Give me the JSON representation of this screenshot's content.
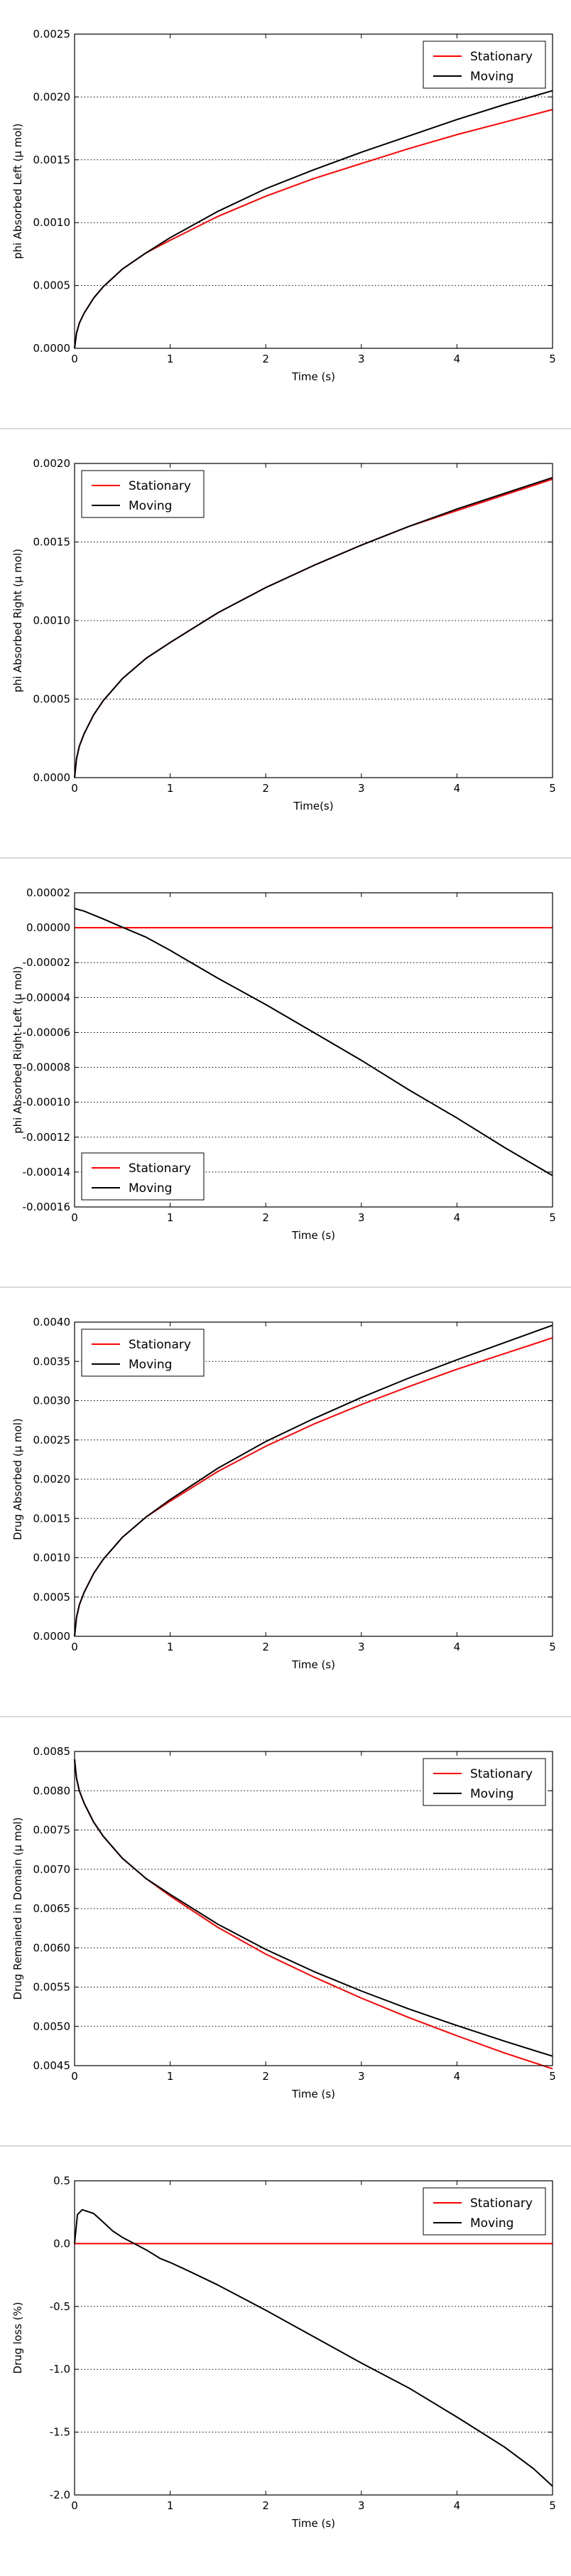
{
  "chart_data": [
    {
      "type": "line",
      "xlabel": "Time (s)",
      "ylabel": "phi Absorbed Left (μ mol)",
      "xlim": [
        0,
        5
      ],
      "ylim": [
        0,
        0.0025
      ],
      "xticks": [
        "0",
        "1",
        "2",
        "3",
        "4",
        "5"
      ],
      "yticks": [
        "0.0000",
        "0.0005",
        "0.0010",
        "0.0015",
        "0.0020",
        "0.0025"
      ],
      "grid": "horizontal dotted",
      "legend_position": "top-right",
      "x": [
        0,
        0.02,
        0.05,
        0.1,
        0.2,
        0.3,
        0.5,
        0.75,
        1,
        1.5,
        2,
        2.5,
        3,
        3.5,
        4,
        4.5,
        5
      ],
      "series": [
        {
          "name": "Stationary",
          "color": "#ff0000",
          "values": [
            0,
            0.00012,
            0.0002,
            0.00028,
            0.0004,
            0.00049,
            0.00063,
            0.00076,
            0.00086,
            0.00105,
            0.00121,
            0.00135,
            0.00147,
            0.00159,
            0.0017,
            0.0018,
            0.0019
          ]
        },
        {
          "name": "Moving",
          "color": "#000000",
          "values": [
            0,
            0.00012,
            0.0002,
            0.00028,
            0.0004,
            0.00049,
            0.00063,
            0.00076,
            0.00088,
            0.00109,
            0.00127,
            0.00142,
            0.00156,
            0.00169,
            0.00182,
            0.00194,
            0.00205
          ]
        }
      ]
    },
    {
      "type": "line",
      "xlabel": "Time(s)",
      "ylabel": "phi Absorbed Right (μ mol)",
      "xlim": [
        0,
        5
      ],
      "ylim": [
        0,
        0.002
      ],
      "xticks": [
        "0",
        "1",
        "2",
        "3",
        "4",
        "5"
      ],
      "yticks": [
        "0.0000",
        "0.0005",
        "0.0010",
        "0.0015",
        "0.0020"
      ],
      "grid": "horizontal dotted",
      "legend_position": "top-left",
      "x": [
        0,
        0.02,
        0.05,
        0.1,
        0.2,
        0.3,
        0.5,
        0.75,
        1,
        1.5,
        2,
        2.5,
        3,
        3.5,
        4,
        4.5,
        5
      ],
      "series": [
        {
          "name": "Stationary",
          "color": "#ff0000",
          "values": [
            0,
            0.00012,
            0.0002,
            0.00028,
            0.0004,
            0.00049,
            0.00063,
            0.00076,
            0.00086,
            0.00105,
            0.00121,
            0.00135,
            0.00148,
            0.0016,
            0.0017,
            0.0018,
            0.0019
          ]
        },
        {
          "name": "Moving",
          "color": "#000000",
          "values": [
            0,
            0.00012,
            0.0002,
            0.00028,
            0.0004,
            0.00049,
            0.00063,
            0.00076,
            0.00086,
            0.00105,
            0.00121,
            0.00135,
            0.00148,
            0.0016,
            0.00171,
            0.00181,
            0.00191
          ]
        }
      ]
    },
    {
      "type": "line",
      "xlabel": "Time (s)",
      "ylabel": "phi Absorbed Right-Left (μ mol)",
      "xlim": [
        0,
        5
      ],
      "ylim": [
        -0.00016,
        2e-05
      ],
      "xticks": [
        "0",
        "1",
        "2",
        "3",
        "4",
        "5"
      ],
      "yticks": [
        "-0.00016",
        "-0.00014",
        "-0.00012",
        "-0.00010",
        "-0.00008",
        "-0.00006",
        "-0.00004",
        "-0.00002",
        "0.00000",
        "0.00002"
      ],
      "grid": "horizontal dotted",
      "legend_position": "bottom-left",
      "x": [
        0,
        0.1,
        0.3,
        0.5,
        0.75,
        1,
        1.5,
        2,
        2.5,
        3,
        3.5,
        4,
        4.5,
        5
      ],
      "series": [
        {
          "name": "Stationary",
          "color": "#ff0000",
          "values": [
            0,
            0,
            0,
            0,
            0,
            0,
            0,
            0,
            0,
            0,
            0,
            0,
            0,
            0
          ]
        },
        {
          "name": "Moving",
          "color": "#000000",
          "values": [
            1.1e-05,
            9.5e-06,
            5e-06,
            3e-07,
            -5.5e-06,
            -1.3e-05,
            -2.9e-05,
            -4.4e-05,
            -6e-05,
            -7.6e-05,
            -9.3e-05,
            -0.000109,
            -0.000126,
            -0.000142
          ]
        }
      ]
    },
    {
      "type": "line",
      "xlabel": "Time (s)",
      "ylabel": "Drug Absorbed (μ mol)",
      "xlim": [
        0,
        5
      ],
      "ylim": [
        0,
        0.004
      ],
      "xticks": [
        "0",
        "1",
        "2",
        "3",
        "4",
        "5"
      ],
      "yticks": [
        "0.0000",
        "0.0005",
        "0.0010",
        "0.0015",
        "0.0020",
        "0.0025",
        "0.0030",
        "0.0035",
        "0.0040"
      ],
      "grid": "horizontal dotted",
      "legend_position": "top-left",
      "x": [
        0,
        0.02,
        0.05,
        0.1,
        0.2,
        0.3,
        0.5,
        0.75,
        1,
        1.5,
        2,
        2.5,
        3,
        3.5,
        4,
        4.5,
        5
      ],
      "series": [
        {
          "name": "Stationary",
          "color": "#ff0000",
          "values": [
            0,
            0.00024,
            0.0004,
            0.00056,
            0.0008,
            0.00098,
            0.00126,
            0.00152,
            0.00172,
            0.0021,
            0.00242,
            0.0027,
            0.00295,
            0.00318,
            0.0034,
            0.0036,
            0.0038
          ]
        },
        {
          "name": "Moving",
          "color": "#000000",
          "values": [
            0,
            0.00024,
            0.0004,
            0.00056,
            0.0008,
            0.00098,
            0.00126,
            0.00152,
            0.00174,
            0.00214,
            0.00248,
            0.00277,
            0.00304,
            0.00329,
            0.00352,
            0.00374,
            0.00396
          ]
        }
      ]
    },
    {
      "type": "line",
      "xlabel": "Time (s)",
      "ylabel": "Drug Remained in Domain (μ mol)",
      "xlim": [
        0,
        5
      ],
      "ylim": [
        0.0045,
        0.0085
      ],
      "xticks": [
        "0",
        "1",
        "2",
        "3",
        "4",
        "5"
      ],
      "yticks": [
        "0.0045",
        "0.0050",
        "0.0055",
        "0.0060",
        "0.0065",
        "0.0070",
        "0.0075",
        "0.0080",
        "0.0085"
      ],
      "grid": "horizontal dotted",
      "legend_position": "top-right",
      "x": [
        0,
        0.02,
        0.05,
        0.1,
        0.2,
        0.3,
        0.5,
        0.75,
        1,
        1.5,
        2,
        2.5,
        3,
        3.5,
        4,
        4.5,
        5
      ],
      "series": [
        {
          "name": "Stationary",
          "color": "#ff0000",
          "values": [
            0.0084,
            0.00816,
            0.008,
            0.00784,
            0.0076,
            0.00742,
            0.00714,
            0.00688,
            0.00666,
            0.00626,
            0.00592,
            0.00563,
            0.00536,
            0.00511,
            0.00488,
            0.00466,
            0.00446
          ]
        },
        {
          "name": "Moving",
          "color": "#000000",
          "values": [
            0.0084,
            0.00816,
            0.008,
            0.00784,
            0.0076,
            0.00742,
            0.00714,
            0.00688,
            0.00668,
            0.0063,
            0.00598,
            0.0057,
            0.00545,
            0.00522,
            0.00501,
            0.00481,
            0.00462
          ]
        }
      ]
    },
    {
      "type": "line",
      "xlabel": "Time (s)",
      "ylabel": "Drug loss (%)",
      "xlim": [
        0,
        5
      ],
      "ylim": [
        -2.0,
        0.5
      ],
      "xticks": [
        "0",
        "1",
        "2",
        "3",
        "4",
        "5"
      ],
      "yticks": [
        "-2.0",
        "-1.5",
        "-1.0",
        "-0.5",
        "0.0",
        "0.5"
      ],
      "grid": "horizontal dotted",
      "legend_position": "top-right",
      "x": [
        0,
        0.03,
        0.08,
        0.2,
        0.3,
        0.4,
        0.5,
        0.6,
        0.75,
        0.9,
        1,
        1.2,
        1.5,
        1.75,
        2,
        2.5,
        3,
        3.5,
        4,
        4.5,
        4.8,
        5
      ],
      "series": [
        {
          "name": "Stationary",
          "color": "#ff0000",
          "values": [
            0,
            0,
            0,
            0,
            0,
            0,
            0,
            0,
            0,
            0,
            0,
            0,
            0,
            0,
            0,
            0,
            0,
            0,
            0,
            0,
            0,
            0
          ]
        },
        {
          "name": "Moving",
          "color": "#000000",
          "values": [
            0.0,
            0.23,
            0.27,
            0.24,
            0.17,
            0.1,
            0.05,
            0.01,
            -0.05,
            -0.12,
            -0.15,
            -0.22,
            -0.33,
            -0.43,
            -0.53,
            -0.74,
            -0.95,
            -1.15,
            -1.38,
            -1.62,
            -1.79,
            -1.93
          ]
        }
      ]
    }
  ]
}
